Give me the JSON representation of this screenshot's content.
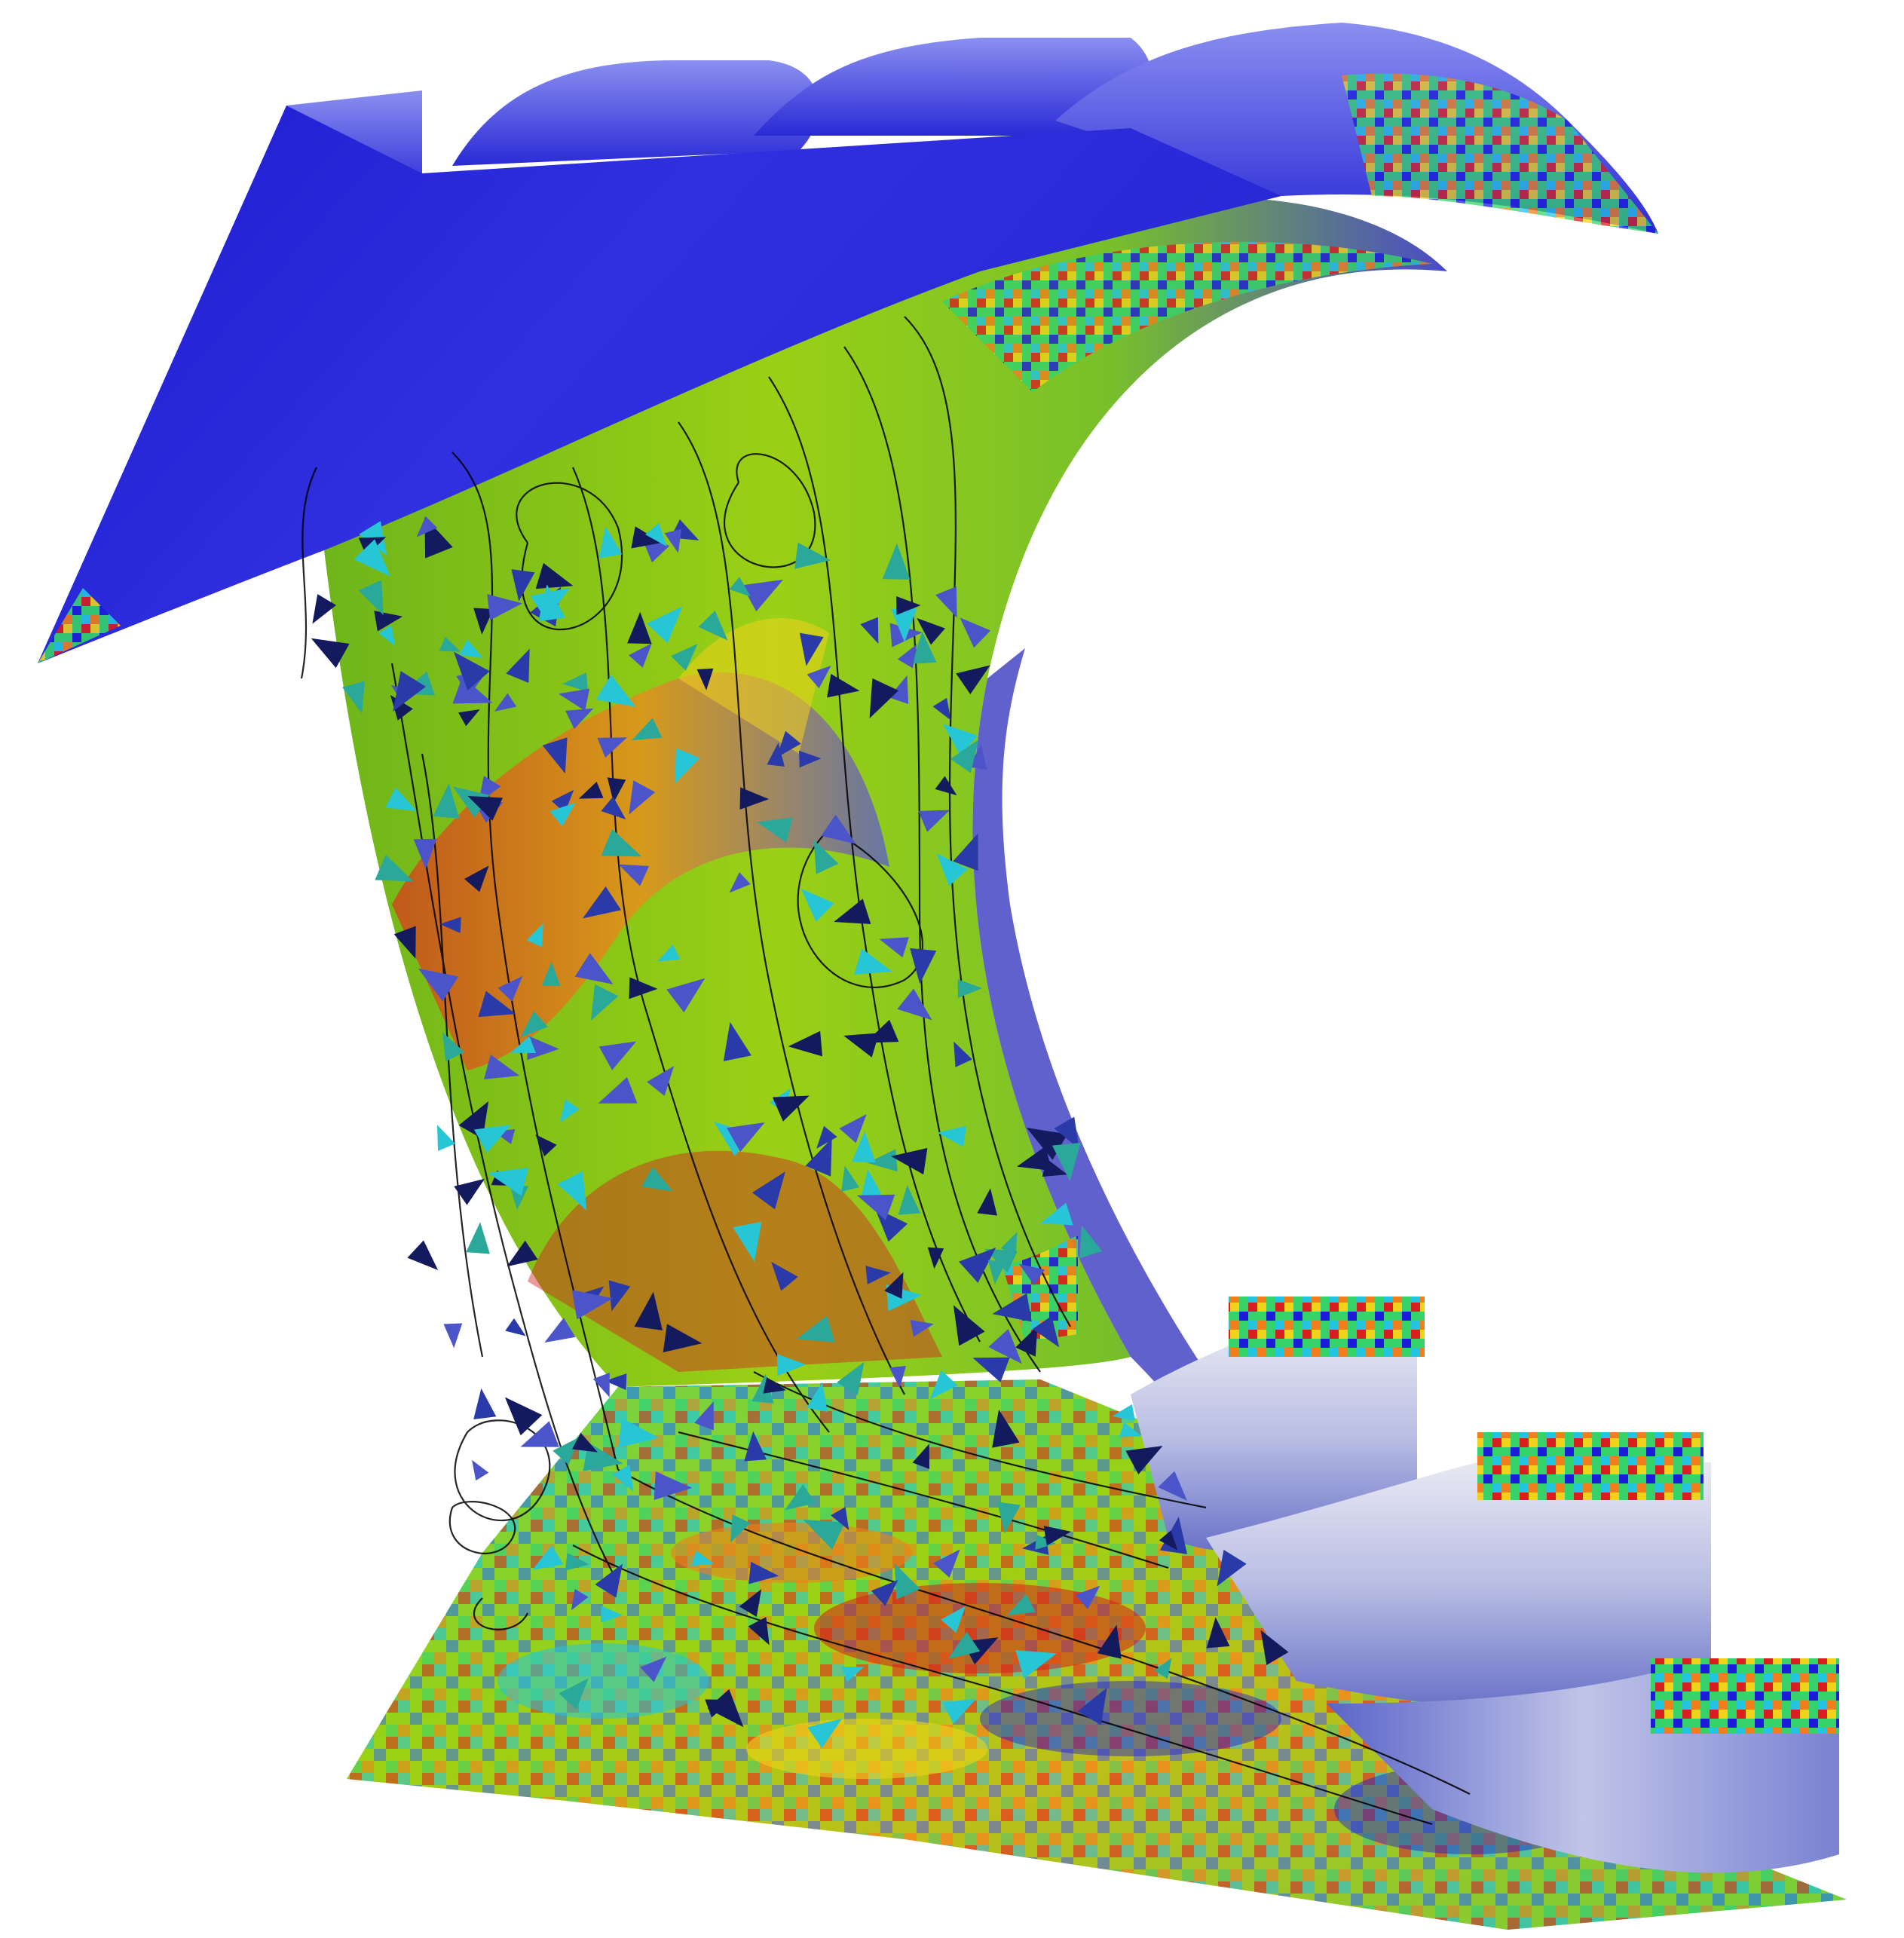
{
  "scene": {
    "kind": "3d-flow-visualization",
    "background": "#ffffff",
    "surfaces": [
      {
        "name": "top-plate",
        "dominant_color": "#2a2ad6"
      },
      {
        "name": "curved-blade",
        "dominant_color": "#7fc31c"
      },
      {
        "name": "floor-plate",
        "dominant_color": "#2ad07a"
      },
      {
        "name": "outlet-pipes",
        "dominant_color": "#c9cbe6"
      }
    ],
    "colormap": [
      "#1b1bd9",
      "#2f6be8",
      "#22c4e0",
      "#35d36a",
      "#9ad215",
      "#f0d21b",
      "#f07f1b",
      "#d81e1e"
    ],
    "streamlines": {
      "color": "#000000"
    },
    "glyph_colors": [
      "#141a5e",
      "#2a3aa8",
      "#4b55c9",
      "#26c6d6",
      "#2aa89a"
    ]
  }
}
